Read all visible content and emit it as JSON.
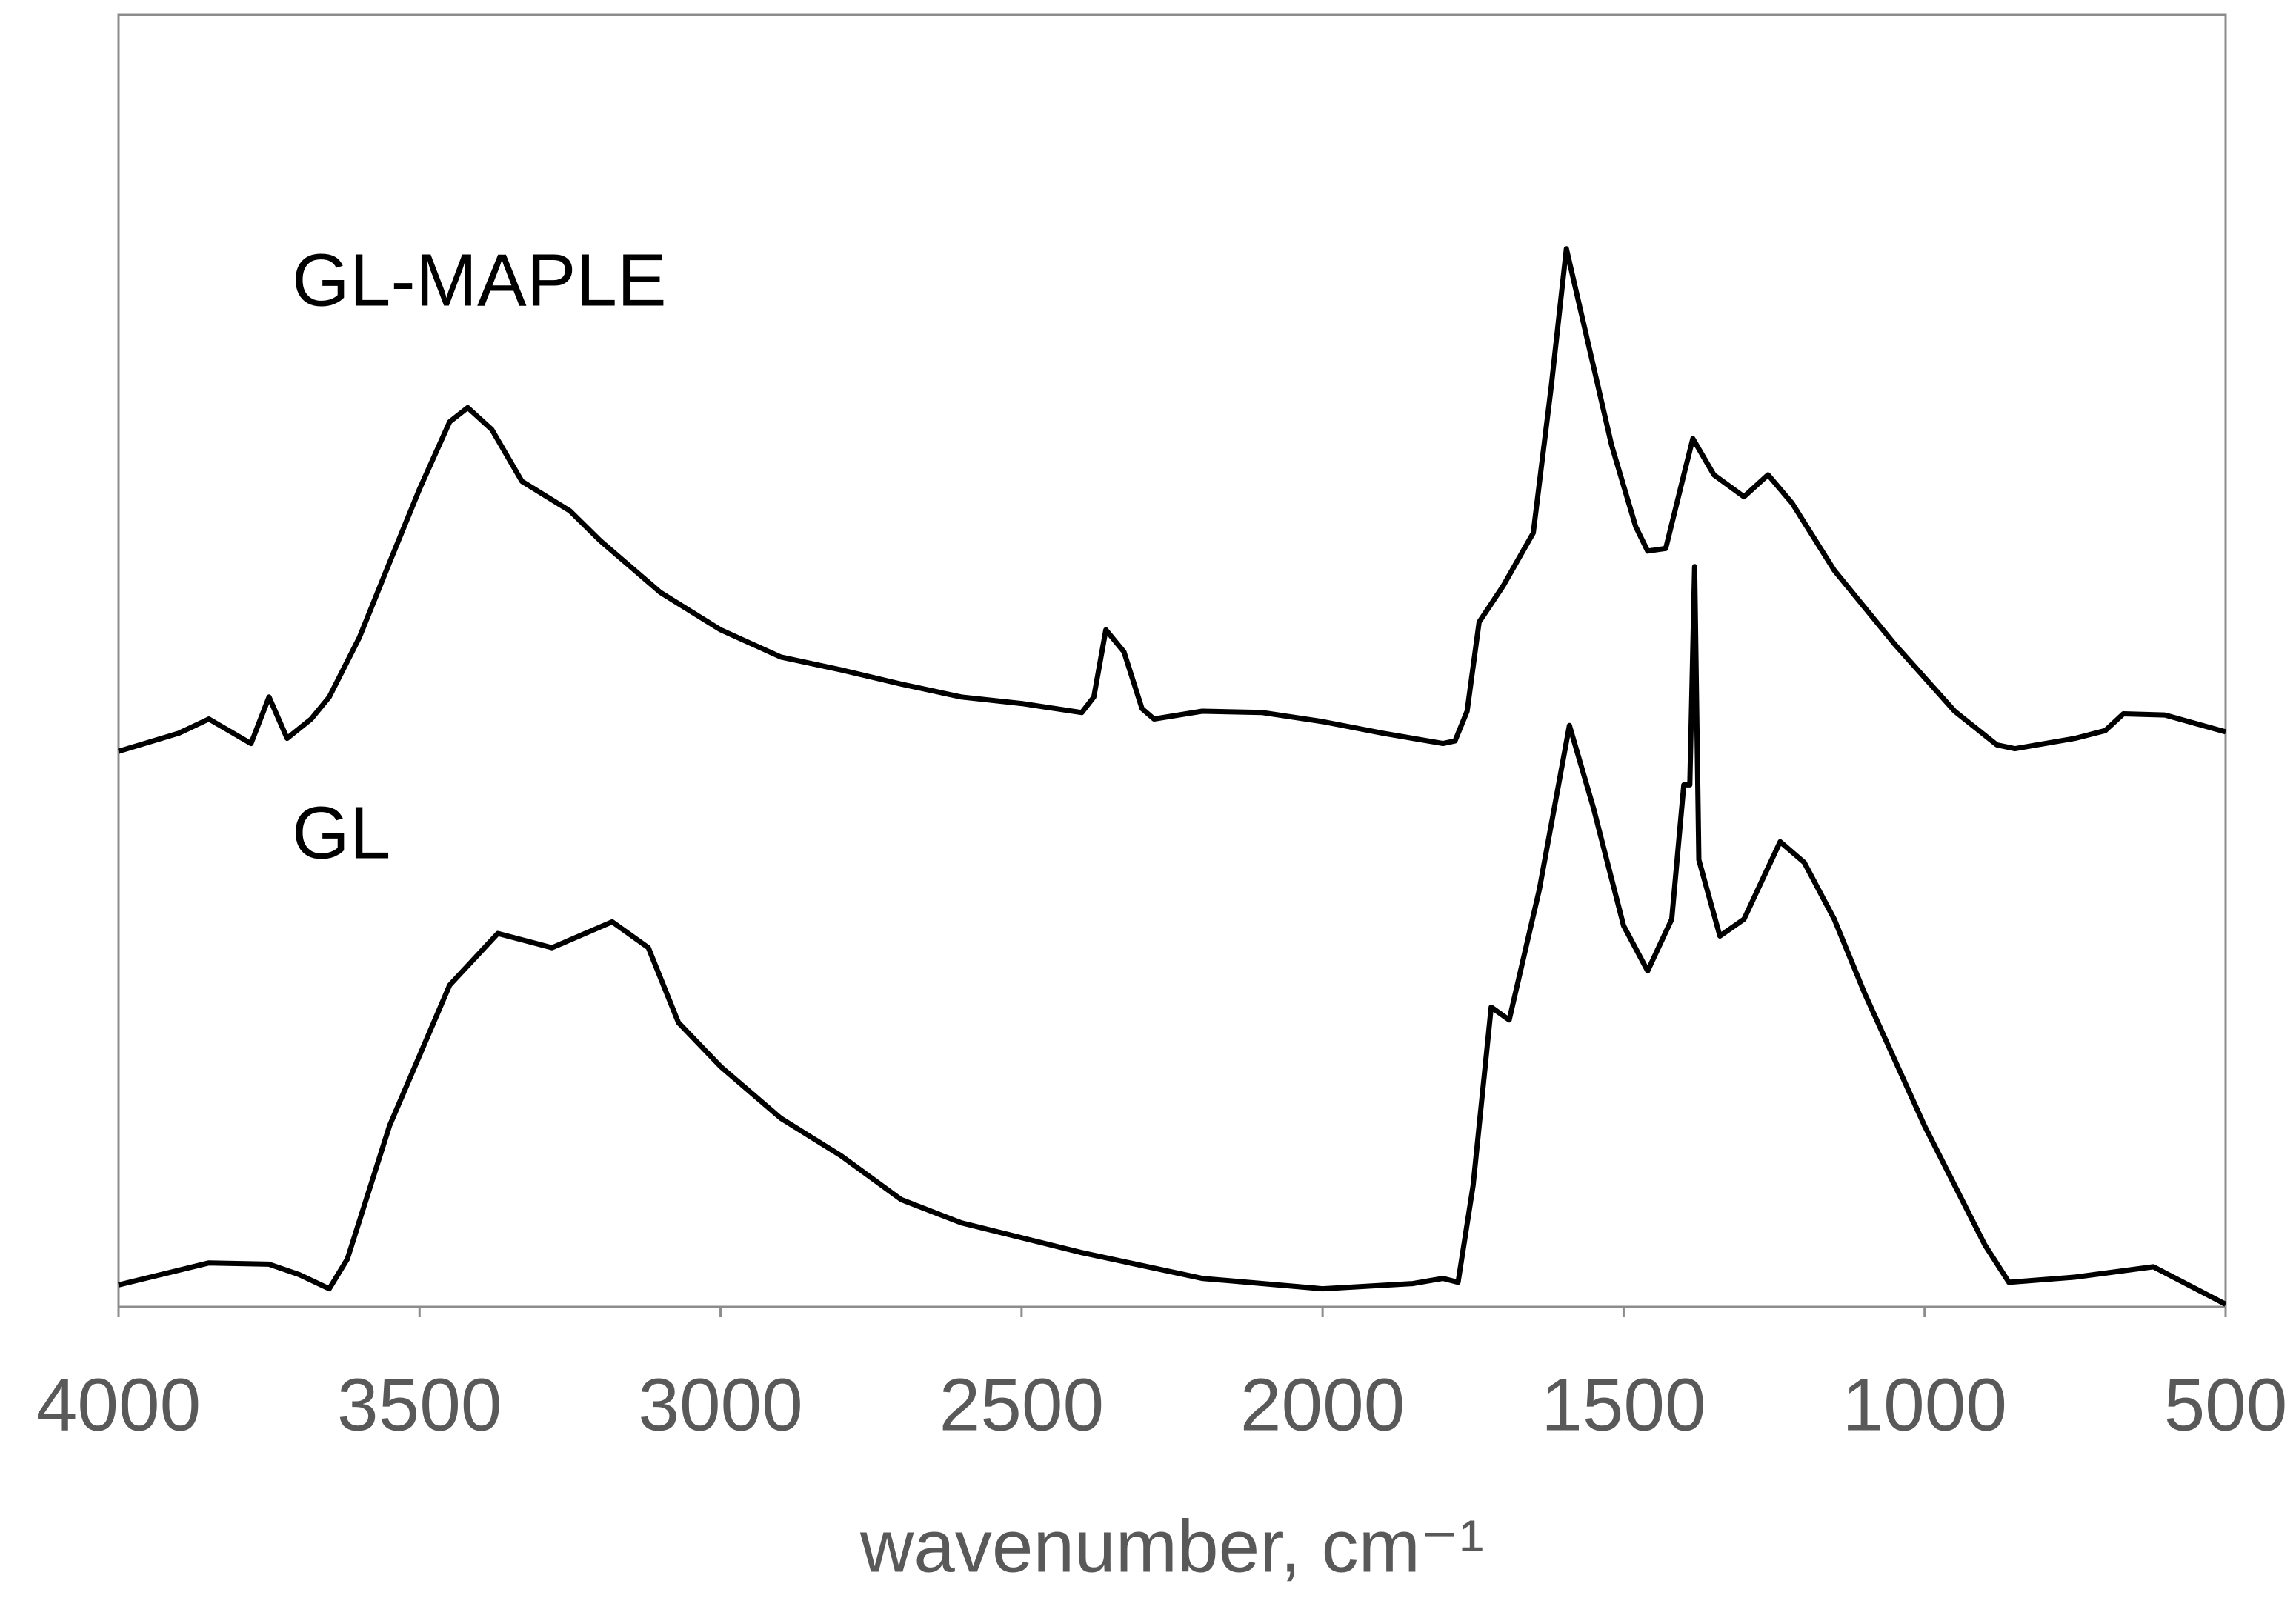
{
  "chart_data": {
    "type": "line",
    "x_label": "wavenumber, cm⁻¹",
    "xlim": [
      4000,
      500
    ],
    "xticks": [
      4000,
      3500,
      3000,
      2500,
      2000,
      1500,
      1000,
      500
    ],
    "ylim": [
      0,
      100
    ],
    "series": [
      {
        "name": "GL-MAPLE",
        "color": "#000000",
        "x": [
          4000,
          3900,
          3850,
          3780,
          3750,
          3720,
          3680,
          3650,
          3600,
          3550,
          3500,
          3450,
          3420,
          3380,
          3330,
          3250,
          3200,
          3100,
          3000,
          2900,
          2800,
          2700,
          2600,
          2500,
          2400,
          2380,
          2360,
          2330,
          2300,
          2280,
          2200,
          2100,
          2000,
          1900,
          1800,
          1780,
          1760,
          1740,
          1700,
          1650,
          1620,
          1595,
          1560,
          1520,
          1480,
          1460,
          1430,
          1400,
          1385,
          1350,
          1300,
          1260,
          1220,
          1150,
          1050,
          950,
          880,
          850,
          750,
          700,
          670,
          600,
          500
        ],
        "values": [
          43.0,
          44.4,
          45.5,
          43.6,
          47.2,
          44.0,
          45.5,
          47.2,
          51.8,
          57.6,
          63.3,
          68.5,
          69.6,
          67.9,
          63.9,
          61.6,
          59.3,
          55.3,
          52.4,
          50.3,
          49.3,
          48.2,
          47.2,
          46.7,
          46.0,
          47.2,
          52.4,
          50.7,
          46.3,
          45.5,
          46.1,
          46.0,
          45.3,
          44.4,
          43.6,
          43.8,
          46.1,
          53.0,
          55.8,
          59.9,
          71.3,
          81.9,
          74.8,
          66.7,
          60.4,
          58.5,
          58.7,
          64.4,
          67.2,
          64.4,
          62.7,
          64.4,
          62.2,
          57.0,
          51.3,
          46.1,
          43.5,
          43.2,
          44.0,
          44.6,
          45.9,
          45.8,
          44.5
        ]
      },
      {
        "name": "GL",
        "color": "#000000",
        "x": [
          4000,
          3850,
          3750,
          3700,
          3650,
          3620,
          3550,
          3450,
          3370,
          3280,
          3180,
          3120,
          3070,
          3000,
          2900,
          2800,
          2700,
          2600,
          2400,
          2200,
          2000,
          1850,
          1800,
          1775,
          1750,
          1720,
          1690,
          1640,
          1590,
          1550,
          1500,
          1460,
          1420,
          1400,
          1390,
          1382,
          1375,
          1340,
          1300,
          1240,
          1200,
          1150,
          1100,
          1000,
          900,
          860,
          750,
          620,
          500
        ],
        "values": [
          1.7,
          3.4,
          3.3,
          2.5,
          1.4,
          3.7,
          14.0,
          24.9,
          28.9,
          27.8,
          29.8,
          27.8,
          22.0,
          18.6,
          14.6,
          11.7,
          8.3,
          6.5,
          4.2,
          2.2,
          1.4,
          1.8,
          2.2,
          1.9,
          9.4,
          23.2,
          22.2,
          32.3,
          45.0,
          38.6,
          29.5,
          26.0,
          30.0,
          40.4,
          40.4,
          57.3,
          34.6,
          28.7,
          30.0,
          36.0,
          34.4,
          30.0,
          24.3,
          14.0,
          4.8,
          1.9,
          2.3,
          3.1,
          0.2
        ]
      }
    ]
  }
}
